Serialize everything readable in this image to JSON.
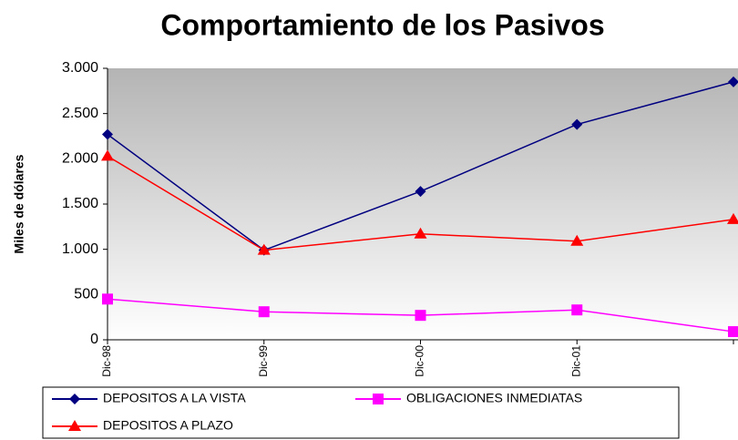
{
  "chart_data": {
    "type": "line",
    "title": "Comportamiento de los Pasivos",
    "y_label": "Miles de dólares",
    "categories": [
      "Dic-98",
      "Dic-99",
      "Dic-00",
      "Dic-01",
      null
    ],
    "series": [
      {
        "name": "DEPOSITOS A LA VISTA",
        "color": "#000080",
        "marker": "diamond",
        "values": [
          2270,
          990,
          1640,
          2380,
          2850
        ]
      },
      {
        "name": "OBLIGACIONES INMEDIATAS",
        "color": "#ff00ff",
        "marker": "square",
        "values": [
          450,
          310,
          270,
          330,
          90
        ]
      },
      {
        "name": "DEPOSITOS A PLAZO",
        "color": "#ff0000",
        "marker": "triangle",
        "values": [
          2030,
          990,
          1170,
          1090,
          1330
        ]
      }
    ],
    "ylim": [
      0,
      3000
    ],
    "yticks": [
      0,
      500,
      {
        "value": 1000,
        "label": "1.000"
      },
      {
        "value": 1500,
        "label": "1.500"
      },
      {
        "value": 2000,
        "label": "2.000"
      },
      {
        "value": 2500,
        "label": "2.500"
      },
      {
        "value": 3000,
        "label": "3.000"
      }
    ]
  }
}
